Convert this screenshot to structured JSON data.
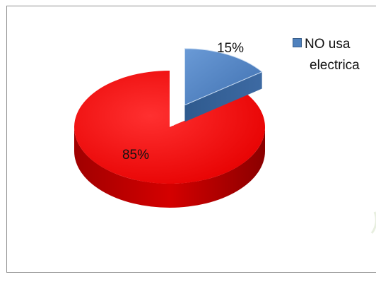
{
  "chart_data": {
    "type": "pie",
    "title": "",
    "slices": [
      {
        "label": "",
        "value": 85,
        "display": "85%",
        "color": "#ff0000"
      },
      {
        "label": "NO usa electrica",
        "value": 15,
        "display": "15%",
        "color": "#4f81bd"
      }
    ],
    "style": "3d-exploded",
    "legend": {
      "placement": "right",
      "entries": [
        {
          "line1": "NO usa",
          "line2": "electrica",
          "color": "#4f81bd"
        }
      ]
    }
  }
}
